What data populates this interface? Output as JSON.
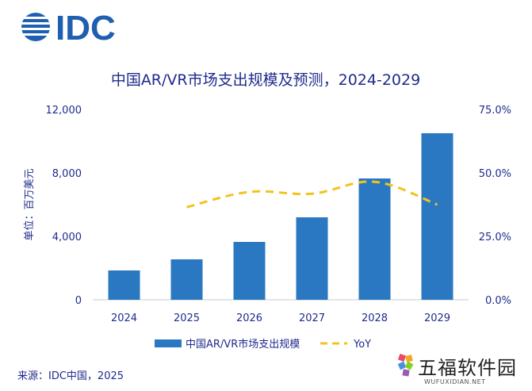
{
  "logo_text": "IDC",
  "chart_data": {
    "type": "bar",
    "title": "中国AR/VR市场支出规模及预测，2024-2029",
    "ylabel": "单位：百万美元",
    "categories": [
      "2024",
      "2025",
      "2026",
      "2027",
      "2028",
      "2029"
    ],
    "ylim": [
      0,
      12000
    ],
    "y_ticks": [
      "0",
      "4,000",
      "8,000",
      "12,000"
    ],
    "y2lim": [
      0,
      75
    ],
    "y2_ticks": [
      "0.0%",
      "25.0%",
      "50.0%",
      "75.0%"
    ],
    "series": [
      {
        "name": "中国AR/VR市场支出规模",
        "type": "bar",
        "axis": "left",
        "values": [
          1850,
          2550,
          3650,
          5200,
          7650,
          10500
        ],
        "color": "#2b78c2"
      },
      {
        "name": "YoY",
        "type": "line",
        "axis": "right",
        "style": "dashed",
        "values": [
          null,
          36.5,
          42.5,
          41.8,
          46.5,
          37.5
        ],
        "color": "#f2c41c"
      }
    ],
    "legend": "bottom",
    "grid": false
  },
  "source": "来源：IDC中国，2025",
  "watermark": {
    "brand_cn": "五福软件园",
    "brand_en": "WUFUXIDIAN.NET"
  }
}
